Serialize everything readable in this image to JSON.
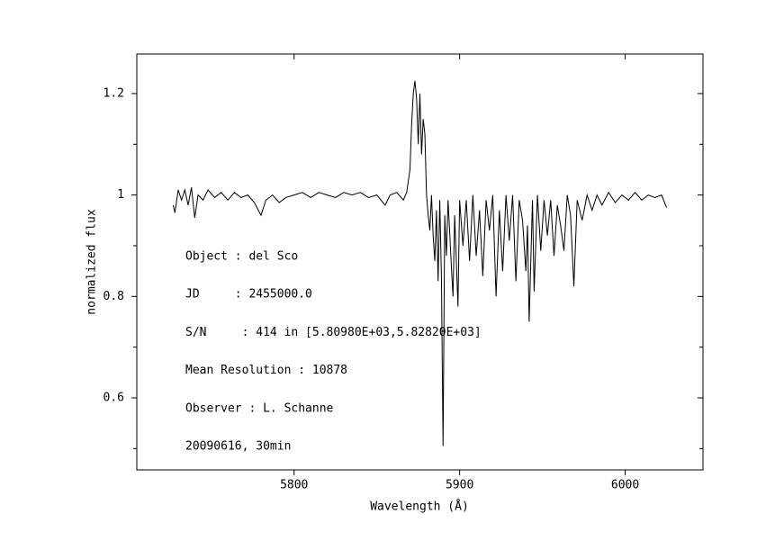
{
  "chart_data": {
    "type": "line",
    "xlabel": "Wavelength (Å)",
    "ylabel": "normalized flux",
    "xlim": [
      5705,
      6047
    ],
    "ylim": [
      0.458,
      1.278
    ],
    "xticks": [
      5800,
      5900,
      6000
    ],
    "yticks": [
      0.6,
      0.8,
      {
        "value": 1,
        "label": "1"
      },
      1.2
    ],
    "yminorticks": [
      0.5,
      0.7,
      0.9,
      1.1
    ],
    "color": "#000000",
    "annotations": [
      "Object : del Sco",
      "JD     : 2455000.0",
      "S/N     : 414 in [5.80980E+03,5.82820E+03]",
      "Mean Resolution : 10878",
      "Observer : L. Schanne",
      "20090616, 30min"
    ],
    "x": [
      5727,
      5728,
      5730,
      5732,
      5734,
      5736,
      5738,
      5740,
      5742,
      5745,
      5748,
      5752,
      5756,
      5760,
      5764,
      5768,
      5772,
      5776,
      5780,
      5783,
      5787,
      5791,
      5795,
      5800,
      5805,
      5810,
      5815,
      5820,
      5825,
      5830,
      5835,
      5840,
      5845,
      5850,
      5855,
      5858,
      5862,
      5866,
      5868,
      5870,
      5871,
      5872,
      5873,
      5874,
      5875,
      5876,
      5877,
      5878,
      5879,
      5880,
      5881,
      5882,
      5883,
      5884,
      5885,
      5886,
      5887,
      5888,
      5889,
      5890,
      5891,
      5892,
      5893,
      5895,
      5896,
      5897,
      5899,
      5900,
      5902,
      5904,
      5906,
      5908,
      5910,
      5912,
      5914,
      5916,
      5918,
      5920,
      5922,
      5924,
      5926,
      5928,
      5930,
      5932,
      5934,
      5936,
      5938,
      5940,
      5941,
      5942,
      5944,
      5945,
      5947,
      5949,
      5951,
      5953,
      5955,
      5957,
      5959,
      5961,
      5963,
      5965,
      5967,
      5969,
      5971,
      5974,
      5977,
      5980,
      5983,
      5986,
      5990,
      5994,
      5998,
      6002,
      6006,
      6010,
      6014,
      6018,
      6022,
      6025
    ],
    "values": [
      0.98,
      0.965,
      1.01,
      0.99,
      1.01,
      0.98,
      1.015,
      0.955,
      1.0,
      0.99,
      1.01,
      0.995,
      1.005,
      0.99,
      1.005,
      0.995,
      1.0,
      0.985,
      0.96,
      0.99,
      1.0,
      0.985,
      0.995,
      1.0,
      1.005,
      0.995,
      1.005,
      1.0,
      0.995,
      1.005,
      1.0,
      1.005,
      0.995,
      1.0,
      0.98,
      1.0,
      1.005,
      0.99,
      1.005,
      1.05,
      1.14,
      1.2,
      1.225,
      1.19,
      1.1,
      1.2,
      1.08,
      1.15,
      1.12,
      1.0,
      0.96,
      0.93,
      1.0,
      0.92,
      0.87,
      0.97,
      0.83,
      0.99,
      0.84,
      0.505,
      0.96,
      0.88,
      0.99,
      0.86,
      0.8,
      0.96,
      0.78,
      0.99,
      0.9,
      0.99,
      0.87,
      1.0,
      0.88,
      0.97,
      0.84,
      0.99,
      0.93,
      1.0,
      0.8,
      0.97,
      0.85,
      1.0,
      0.91,
      1.0,
      0.83,
      0.99,
      0.95,
      0.85,
      0.94,
      0.75,
      0.99,
      0.81,
      1.0,
      0.89,
      0.99,
      0.92,
      0.99,
      0.88,
      0.98,
      0.94,
      0.89,
      1.0,
      0.96,
      0.82,
      0.99,
      0.95,
      1.0,
      0.97,
      1.0,
      0.98,
      1.005,
      0.985,
      1.0,
      0.99,
      1.005,
      0.99,
      1.0,
      0.995,
      1.0,
      0.975
    ]
  }
}
